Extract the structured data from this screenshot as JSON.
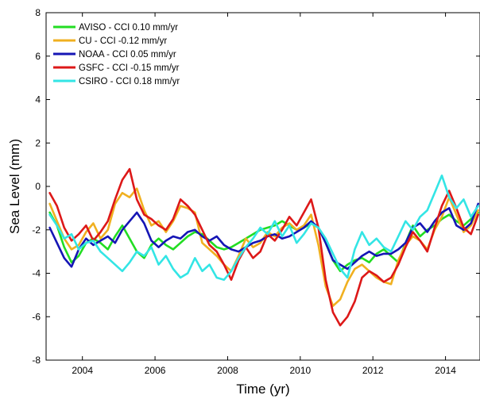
{
  "chart_data": {
    "type": "line",
    "xlabel": "Time (yr)",
    "ylabel": "Sea Level (mm)",
    "xlim": [
      2003.0,
      2014.95
    ],
    "ylim": [
      -8,
      8
    ],
    "xticks": [
      2004,
      2006,
      2008,
      2010,
      2012,
      2014
    ],
    "yticks": [
      -8,
      -6,
      -4,
      -2,
      0,
      2,
      4,
      6,
      8
    ],
    "grid": false,
    "legend_position": "top-left",
    "series": [
      {
        "name": "AVISO - CCI   0.10 mm/yr",
        "color": "#22dd22",
        "x": [
          2003.1,
          2003.3,
          2003.5,
          2003.7,
          2003.9,
          2004.1,
          2004.3,
          2004.5,
          2004.7,
          2004.9,
          2005.1,
          2005.3,
          2005.5,
          2005.7,
          2005.9,
          2006.1,
          2006.3,
          2006.5,
          2006.7,
          2006.9,
          2007.1,
          2007.3,
          2007.5,
          2007.7,
          2007.9,
          2008.1,
          2008.3,
          2008.5,
          2008.7,
          2008.9,
          2009.1,
          2009.3,
          2009.5,
          2009.7,
          2009.9,
          2010.1,
          2010.3,
          2010.5,
          2010.7,
          2010.9,
          2011.1,
          2011.3,
          2011.5,
          2011.7,
          2011.9,
          2012.1,
          2012.3,
          2012.5,
          2012.7,
          2012.9,
          2013.1,
          2013.3,
          2013.5,
          2013.7,
          2013.9,
          2014.1,
          2014.3,
          2014.5,
          2014.7,
          2014.9
        ],
        "y": [
          -1.2,
          -1.8,
          -2.8,
          -3.5,
          -3.2,
          -2.6,
          -2.4,
          -2.6,
          -2.9,
          -2.3,
          -1.8,
          -2.4,
          -3.0,
          -3.3,
          -2.7,
          -2.4,
          -2.7,
          -2.9,
          -2.6,
          -2.3,
          -2.1,
          -2.2,
          -2.5,
          -2.8,
          -2.9,
          -2.8,
          -2.6,
          -2.4,
          -2.2,
          -2.0,
          -1.9,
          -1.8,
          -1.6,
          -1.8,
          -2.0,
          -1.9,
          -1.7,
          -1.9,
          -2.6,
          -3.4,
          -3.9,
          -3.6,
          -3.4,
          -3.3,
          -3.5,
          -3.1,
          -2.9,
          -3.2,
          -3.5,
          -2.6,
          -1.8,
          -2.3,
          -2.0,
          -1.8,
          -1.5,
          -1.3,
          -1.6,
          -1.8,
          -1.5,
          -1.2
        ]
      },
      {
        "name": "CU - CCI   -0.12 mm/yr",
        "color": "#f0b020",
        "x": [
          2003.1,
          2003.3,
          2003.5,
          2003.7,
          2003.9,
          2004.1,
          2004.3,
          2004.5,
          2004.7,
          2004.9,
          2005.1,
          2005.3,
          2005.5,
          2005.7,
          2005.9,
          2006.1,
          2006.3,
          2006.5,
          2006.7,
          2006.9,
          2007.1,
          2007.3,
          2007.5,
          2007.7,
          2007.9,
          2008.1,
          2008.3,
          2008.5,
          2008.7,
          2008.9,
          2009.1,
          2009.3,
          2009.5,
          2009.7,
          2009.9,
          2010.1,
          2010.3,
          2010.5,
          2010.7,
          2010.9,
          2011.1,
          2011.3,
          2011.5,
          2011.7,
          2011.9,
          2012.1,
          2012.3,
          2012.5,
          2012.7,
          2012.9,
          2013.1,
          2013.3,
          2013.5,
          2013.7,
          2013.9,
          2014.1,
          2014.3,
          2014.5,
          2014.7,
          2014.9
        ],
        "y": [
          -0.8,
          -1.6,
          -2.4,
          -2.9,
          -2.7,
          -2.1,
          -1.7,
          -2.4,
          -2.0,
          -0.8,
          -0.3,
          -0.5,
          -0.1,
          -1.1,
          -1.8,
          -1.6,
          -2.1,
          -1.6,
          -0.9,
          -1.0,
          -1.2,
          -2.6,
          -2.9,
          -3.2,
          -3.6,
          -3.9,
          -3.2,
          -2.4,
          -2.8,
          -2.6,
          -2.1,
          -2.3,
          -1.9,
          -1.7,
          -2.0,
          -1.8,
          -1.3,
          -2.7,
          -4.6,
          -5.5,
          -5.2,
          -4.4,
          -3.8,
          -3.6,
          -3.9,
          -4.2,
          -4.4,
          -4.5,
          -3.4,
          -2.7,
          -2.3,
          -2.5,
          -2.9,
          -2.0,
          -1.4,
          -0.5,
          -1.3,
          -2.1,
          -1.8,
          -1.1
        ]
      },
      {
        "name": "NOAA - CCI  0.05 mm/yr",
        "color": "#1515b5",
        "x": [
          2003.1,
          2003.3,
          2003.5,
          2003.7,
          2003.9,
          2004.1,
          2004.3,
          2004.5,
          2004.7,
          2004.9,
          2005.1,
          2005.3,
          2005.5,
          2005.7,
          2005.9,
          2006.1,
          2006.3,
          2006.5,
          2006.7,
          2006.9,
          2007.1,
          2007.3,
          2007.5,
          2007.7,
          2007.9,
          2008.1,
          2008.3,
          2008.5,
          2008.7,
          2008.9,
          2009.1,
          2009.3,
          2009.5,
          2009.7,
          2009.9,
          2010.1,
          2010.3,
          2010.5,
          2010.7,
          2010.9,
          2011.1,
          2011.3,
          2011.5,
          2011.7,
          2011.9,
          2012.1,
          2012.3,
          2012.5,
          2012.7,
          2012.9,
          2013.1,
          2013.3,
          2013.5,
          2013.7,
          2013.9,
          2014.1,
          2014.3,
          2014.5,
          2014.7,
          2014.9
        ],
        "y": [
          -1.9,
          -2.6,
          -3.3,
          -3.7,
          -2.9,
          -2.4,
          -2.7,
          -2.5,
          -2.3,
          -2.6,
          -2.0,
          -1.6,
          -1.2,
          -1.7,
          -2.5,
          -2.8,
          -2.5,
          -2.3,
          -2.4,
          -2.1,
          -2.0,
          -2.3,
          -2.5,
          -2.3,
          -2.7,
          -2.9,
          -3.0,
          -2.8,
          -2.6,
          -2.5,
          -2.3,
          -2.2,
          -2.4,
          -2.3,
          -2.1,
          -1.9,
          -1.6,
          -1.9,
          -2.6,
          -3.4,
          -3.6,
          -3.8,
          -3.5,
          -3.2,
          -3.0,
          -3.2,
          -3.1,
          -3.1,
          -2.9,
          -2.6,
          -1.9,
          -1.7,
          -2.1,
          -1.6,
          -1.2,
          -1.0,
          -1.8,
          -2.0,
          -1.7,
          -0.8
        ]
      },
      {
        "name": "GSFC - CCI  -0.15 mm/yr",
        "color": "#dd1818",
        "x": [
          2003.1,
          2003.3,
          2003.5,
          2003.7,
          2003.9,
          2004.1,
          2004.3,
          2004.5,
          2004.7,
          2004.9,
          2005.1,
          2005.3,
          2005.5,
          2005.7,
          2005.9,
          2006.1,
          2006.3,
          2006.5,
          2006.7,
          2006.9,
          2007.1,
          2007.3,
          2007.5,
          2007.7,
          2007.9,
          2008.1,
          2008.3,
          2008.5,
          2008.7,
          2008.9,
          2009.1,
          2009.3,
          2009.5,
          2009.7,
          2009.9,
          2010.1,
          2010.3,
          2010.5,
          2010.7,
          2010.9,
          2011.1,
          2011.3,
          2011.5,
          2011.7,
          2011.9,
          2012.1,
          2012.3,
          2012.5,
          2012.7,
          2012.9,
          2013.1,
          2013.3,
          2013.5,
          2013.7,
          2013.9,
          2014.1,
          2014.3,
          2014.5,
          2014.7,
          2014.9
        ],
        "y": [
          -0.3,
          -0.9,
          -1.9,
          -2.5,
          -2.2,
          -1.8,
          -2.5,
          -2.1,
          -1.6,
          -0.6,
          0.3,
          0.8,
          -0.6,
          -1.3,
          -1.5,
          -1.8,
          -2.0,
          -1.5,
          -0.6,
          -0.9,
          -1.3,
          -2.0,
          -2.7,
          -3.0,
          -3.6,
          -4.3,
          -3.4,
          -2.8,
          -3.3,
          -3.0,
          -2.2,
          -2.5,
          -2.0,
          -1.4,
          -1.8,
          -1.2,
          -0.6,
          -1.9,
          -4.3,
          -5.8,
          -6.4,
          -6.0,
          -5.3,
          -4.2,
          -3.9,
          -4.1,
          -4.4,
          -4.2,
          -3.6,
          -2.8,
          -2.1,
          -2.5,
          -3.0,
          -1.9,
          -0.9,
          -0.2,
          -1.0,
          -1.9,
          -2.2,
          -1.3
        ]
      },
      {
        "name": "CSIRO - CCI  0.18 mm/yr",
        "color": "#33e5e5",
        "x": [
          2003.1,
          2003.3,
          2003.5,
          2003.7,
          2003.9,
          2004.1,
          2004.3,
          2004.5,
          2004.7,
          2004.9,
          2005.1,
          2005.3,
          2005.5,
          2005.7,
          2005.9,
          2006.1,
          2006.3,
          2006.5,
          2006.7,
          2006.9,
          2007.1,
          2007.3,
          2007.5,
          2007.7,
          2007.9,
          2008.1,
          2008.3,
          2008.5,
          2008.7,
          2008.9,
          2009.1,
          2009.3,
          2009.5,
          2009.7,
          2009.9,
          2010.1,
          2010.3,
          2010.5,
          2010.7,
          2010.9,
          2011.1,
          2011.3,
          2011.5,
          2011.7,
          2011.9,
          2012.1,
          2012.3,
          2012.5,
          2012.7,
          2012.9,
          2013.1,
          2013.3,
          2013.5,
          2013.7,
          2013.9,
          2014.1,
          2014.3,
          2014.5,
          2014.7,
          2014.9
        ],
        "y": [
          -1.3,
          -1.8,
          -2.4,
          -2.2,
          -2.9,
          -2.6,
          -2.5,
          -3.0,
          -3.3,
          -3.6,
          -3.9,
          -3.5,
          -3.0,
          -3.2,
          -2.8,
          -3.6,
          -3.2,
          -3.8,
          -4.2,
          -4.0,
          -3.3,
          -3.9,
          -3.6,
          -4.2,
          -4.3,
          -3.9,
          -3.3,
          -2.8,
          -2.4,
          -1.9,
          -2.2,
          -1.6,
          -2.3,
          -1.8,
          -2.6,
          -2.2,
          -1.7,
          -1.9,
          -2.4,
          -3.1,
          -3.8,
          -4.2,
          -2.9,
          -2.1,
          -2.7,
          -2.4,
          -2.8,
          -3.0,
          -2.3,
          -1.6,
          -2.0,
          -1.4,
          -1.1,
          -0.3,
          0.5,
          -0.5,
          -1.0,
          -0.6,
          -1.4,
          -0.9
        ]
      }
    ]
  }
}
